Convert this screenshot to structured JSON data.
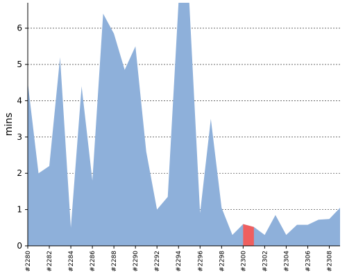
{
  "chart_data": {
    "type": "area",
    "title": "",
    "xlabel": "",
    "ylabel": "mins",
    "ylim": [
      0,
      6.7
    ],
    "y_ticks": [
      0,
      1,
      2,
      3,
      4,
      5,
      6
    ],
    "y_tick_labels": [
      "0",
      "1",
      "2",
      "3",
      "4",
      "5",
      "6"
    ],
    "grid": true,
    "grid_style": "dashed horizontal",
    "x_tick_labels": [
      "#2280",
      "#2282",
      "#2284",
      "#2286",
      "#2288",
      "#2290",
      "#2292",
      "#2294",
      "#2296",
      "#2298",
      "#2300",
      "#2302",
      "#2304",
      "#2306",
      "#2308"
    ],
    "x": [
      "#2280",
      "#2281",
      "#2282",
      "#2283",
      "#2284",
      "#2285",
      "#2286",
      "#2287",
      "#2288",
      "#2289",
      "#2290",
      "#2291",
      "#2292",
      "#2293",
      "#2294",
      "#2295",
      "#2296",
      "#2297",
      "#2298",
      "#2299",
      "#2300",
      "#2301",
      "#2302",
      "#2303",
      "#2304",
      "#2305",
      "#2306",
      "#2307",
      "#2308",
      "#2309"
    ],
    "series": [
      {
        "values": [
          4.5,
          2.0,
          2.2,
          5.2,
          0.5,
          4.4,
          1.8,
          6.4,
          5.85,
          4.85,
          5.5,
          2.6,
          1.0,
          1.35,
          6.7,
          6.7,
          0.9,
          3.5,
          1.05,
          0.3,
          0.6,
          0.52,
          0.3,
          0.85,
          0.3,
          0.58,
          0.58,
          0.72,
          0.74,
          1.05
        ],
        "color": "#8eb0da"
      }
    ],
    "highlight": {
      "from": "#2300",
      "to": "#2301",
      "color": "#ef5f5f"
    }
  }
}
